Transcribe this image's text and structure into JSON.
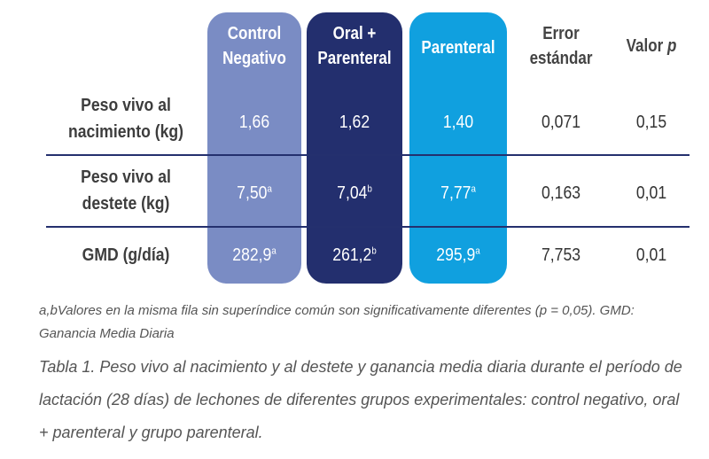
{
  "columns": {
    "control": [
      "Control",
      "Negativo"
    ],
    "oral": [
      "Oral +",
      "Parenteral"
    ],
    "parenteral": "Parenteral",
    "error": [
      "Error",
      "estándar"
    ],
    "pvalue": {
      "text": "Valor ",
      "italic": "p"
    }
  },
  "rows": [
    {
      "label": [
        "Peso vivo al",
        "nacimiento (kg)"
      ],
      "control": {
        "value": "1,66",
        "sup": ""
      },
      "oral": {
        "value": "1,62",
        "sup": ""
      },
      "parenteral": {
        "value": "1,40",
        "sup": ""
      },
      "error": "0,071",
      "pvalue": "0,15"
    },
    {
      "label": [
        "Peso vivo al",
        "destete (kg)"
      ],
      "control": {
        "value": "7,50",
        "sup": "a"
      },
      "oral": {
        "value": "7,04",
        "sup": "b"
      },
      "parenteral": {
        "value": "7,77",
        "sup": "a"
      },
      "error": "0,163",
      "pvalue": "0,01"
    },
    {
      "label": [
        "GMD (g/día)"
      ],
      "control": {
        "value": "282,9",
        "sup": "a"
      },
      "oral": {
        "value": "261,2",
        "sup": "b"
      },
      "parenteral": {
        "value": "295,9",
        "sup": "a"
      },
      "error": "7,753",
      "pvalue": "0,01"
    }
  ],
  "note": [
    "a,bValores en la misma fila sin superíndice común son significativamente diferentes (p = 0,05). GMD:",
    "Ganancia Media Diaria"
  ],
  "caption": [
    "Tabla 1. Peso vivo al nacimiento y al destete y ganancia media diaria durante el período de",
    "lactación (28 días) de lechones de diferentes grupos experimentales: control negativo, oral",
    "+ parenteral y grupo parenteral."
  ],
  "colors": {
    "control": "#7a8cc4",
    "oral": "#232f6e",
    "parenteral": "#10a0df",
    "divider": "#24306e"
  }
}
